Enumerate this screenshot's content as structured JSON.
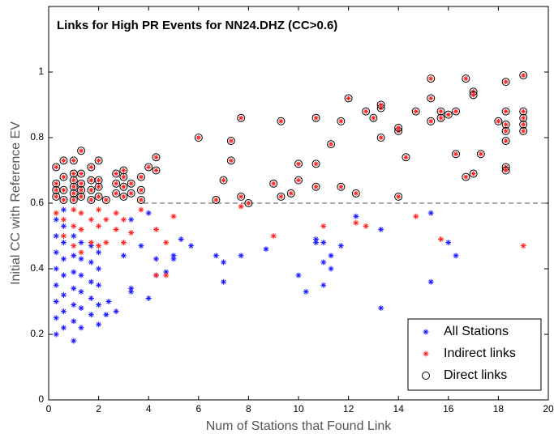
{
  "chart_data": {
    "type": "scatter",
    "title": "Links for High PR Events for NN24.DHZ (CC>0.6)",
    "xlabel": "Num of Stations that Found Link",
    "ylabel": "Initial CC with Reference EV",
    "xlim": [
      0,
      20
    ],
    "ylim": [
      0,
      1.2
    ],
    "xticks": [
      0,
      2,
      4,
      6,
      8,
      10,
      12,
      14,
      16,
      18,
      20
    ],
    "yticks": [
      0,
      0.2,
      0.4,
      0.6,
      0.8,
      1
    ],
    "legend": "lower right",
    "hline": 0.6,
    "hline_xmin": 3.8,
    "series": [
      {
        "name": "All Stations",
        "color": "#1a1aff",
        "marker": "asterisk",
        "x": [
          0.3,
          0.3,
          0.3,
          0.3,
          0.3,
          0.3,
          0.3,
          0.3,
          0.6,
          0.6,
          0.6,
          0.6,
          0.6,
          0.6,
          0.6,
          0.6,
          1.0,
          1.0,
          1.0,
          1.0,
          1.0,
          1.0,
          1.0,
          1.3,
          1.3,
          1.3,
          1.3,
          1.3,
          1.3,
          1.7,
          1.7,
          1.7,
          1.7,
          1.7,
          2.0,
          2.0,
          2.0,
          2.0,
          2.0,
          2.3,
          2.4,
          2.7,
          3.0,
          3.3,
          3.3,
          3.3,
          3.7,
          4.0,
          4.0,
          4.3,
          4.3,
          4.7,
          5.0,
          5.0,
          5.3,
          5.7,
          6.7,
          7.0,
          7.0,
          7.7,
          8.7,
          10.0,
          10.3,
          10.7,
          10.7,
          11.0,
          11.0,
          11.0,
          11.3,
          11.3,
          11.7,
          12.3,
          13.3,
          13.3,
          15.3,
          15.3,
          16.0,
          16.3
        ],
        "y": [
          0.2,
          0.25,
          0.3,
          0.35,
          0.4,
          0.45,
          0.5,
          0.55,
          0.22,
          0.27,
          0.32,
          0.38,
          0.43,
          0.48,
          0.53,
          0.58,
          0.18,
          0.24,
          0.29,
          0.34,
          0.39,
          0.44,
          0.5,
          0.22,
          0.28,
          0.33,
          0.38,
          0.43,
          0.48,
          0.26,
          0.31,
          0.36,
          0.42,
          0.47,
          0.23,
          0.29,
          0.35,
          0.4,
          0.45,
          0.26,
          0.3,
          0.27,
          0.44,
          0.33,
          0.34,
          0.55,
          0.47,
          0.31,
          0.57,
          0.38,
          0.43,
          0.39,
          0.43,
          0.44,
          0.49,
          0.47,
          0.44,
          0.36,
          0.42,
          0.44,
          0.46,
          0.38,
          0.33,
          0.48,
          0.49,
          0.35,
          0.42,
          0.48,
          0.4,
          0.44,
          0.47,
          0.56,
          0.28,
          0.52,
          0.36,
          0.57,
          0.48,
          0.44
        ]
      },
      {
        "name": "Indirect links",
        "color": "#ff2020",
        "marker": "asterisk",
        "x": [
          0.3,
          0.6,
          0.6,
          1.0,
          1.0,
          1.0,
          1.3,
          1.3,
          1.3,
          1.7,
          1.7,
          2.0,
          2.0,
          2.0,
          2.3,
          2.3,
          2.7,
          2.7,
          3.0,
          3.0,
          3.3,
          3.7,
          4.3,
          4.3,
          4.7,
          4.7,
          5.0,
          7.7,
          9.0,
          11.0,
          12.3,
          12.7,
          14.7,
          15.7,
          19.0
        ],
        "y": [
          0.57,
          0.5,
          0.55,
          0.47,
          0.53,
          0.58,
          0.45,
          0.52,
          0.57,
          0.48,
          0.55,
          0.47,
          0.53,
          0.58,
          0.48,
          0.55,
          0.52,
          0.57,
          0.48,
          0.55,
          0.51,
          0.58,
          0.38,
          0.52,
          0.48,
          0.38,
          0.56,
          0.59,
          0.5,
          0.53,
          0.54,
          0.53,
          0.56,
          0.49,
          0.47
        ]
      },
      {
        "name": "Direct links",
        "color": "#000000",
        "marker": "circle",
        "x": [
          0.3,
          0.3,
          0.3,
          0.3,
          0.6,
          0.6,
          0.6,
          0.6,
          1.0,
          1.0,
          1.0,
          1.0,
          1.0,
          1.0,
          1.3,
          1.3,
          1.3,
          1.3,
          1.3,
          1.7,
          1.7,
          1.7,
          1.7,
          2.0,
          2.0,
          2.0,
          2.0,
          2.3,
          2.7,
          2.7,
          2.7,
          3.0,
          3.0,
          3.0,
          3.0,
          3.3,
          3.3,
          3.7,
          3.7,
          3.7,
          4.0,
          4.3,
          4.3,
          6.0,
          6.7,
          7.0,
          7.3,
          7.3,
          7.7,
          7.7,
          8.0,
          9.0,
          9.3,
          9.3,
          9.7,
          10.0,
          10.0,
          10.7,
          10.7,
          10.7,
          11.3,
          11.7,
          11.7,
          12.0,
          12.3,
          12.7,
          13.0,
          13.3,
          13.3,
          13.3,
          14.0,
          14.0,
          14.0,
          14.3,
          14.7,
          15.3,
          15.3,
          15.3,
          15.7,
          15.7,
          16.0,
          16.3,
          16.3,
          16.7,
          16.7,
          17.0,
          17.0,
          17.0,
          17.3,
          18.0,
          18.3,
          18.3,
          18.3,
          18.3,
          18.3,
          18.3,
          18.3,
          19.0,
          19.0,
          19.0,
          19.0,
          19.0
        ],
        "y": [
          0.62,
          0.64,
          0.66,
          0.71,
          0.61,
          0.64,
          0.68,
          0.73,
          0.61,
          0.63,
          0.65,
          0.67,
          0.69,
          0.73,
          0.62,
          0.64,
          0.66,
          0.69,
          0.76,
          0.61,
          0.64,
          0.67,
          0.71,
          0.62,
          0.65,
          0.67,
          0.73,
          0.61,
          0.63,
          0.66,
          0.69,
          0.62,
          0.65,
          0.68,
          0.7,
          0.63,
          0.66,
          0.61,
          0.64,
          0.68,
          0.71,
          0.7,
          0.74,
          0.8,
          0.61,
          0.67,
          0.73,
          0.79,
          0.62,
          0.86,
          0.6,
          0.66,
          0.62,
          0.85,
          0.63,
          0.67,
          0.72,
          0.86,
          0.72,
          0.65,
          0.78,
          0.65,
          0.85,
          0.92,
          0.63,
          0.88,
          0.86,
          0.8,
          0.89,
          0.9,
          0.62,
          0.82,
          0.83,
          0.74,
          0.88,
          0.85,
          0.92,
          0.98,
          0.86,
          0.88,
          0.87,
          0.88,
          0.75,
          0.68,
          0.98,
          0.69,
          0.94,
          0.93,
          0.75,
          0.85,
          0.97,
          0.88,
          0.84,
          0.82,
          0.79,
          0.71,
          0.7,
          0.99,
          0.88,
          0.86,
          0.84,
          0.82
        ]
      }
    ]
  }
}
